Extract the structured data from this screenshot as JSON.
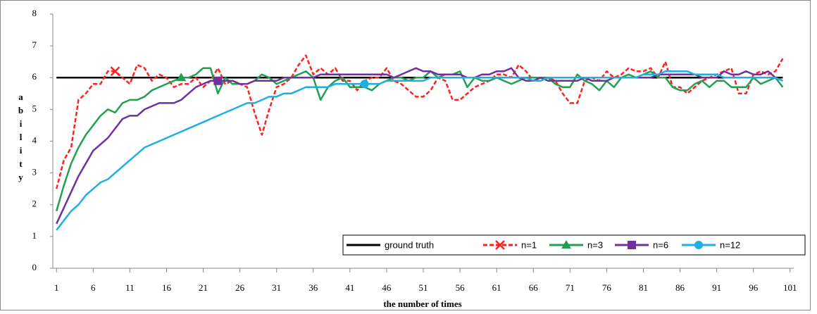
{
  "chart_data": {
    "type": "line",
    "x_label": "the number of times",
    "y_label": "ability",
    "x": [
      1,
      2,
      3,
      4,
      5,
      6,
      7,
      8,
      9,
      10,
      11,
      12,
      13,
      14,
      15,
      16,
      17,
      18,
      19,
      20,
      21,
      22,
      23,
      24,
      25,
      26,
      27,
      28,
      29,
      30,
      31,
      32,
      33,
      34,
      35,
      36,
      37,
      38,
      39,
      40,
      41,
      42,
      43,
      44,
      45,
      46,
      47,
      48,
      49,
      50,
      51,
      52,
      53,
      54,
      55,
      56,
      57,
      58,
      59,
      60,
      61,
      62,
      63,
      64,
      65,
      66,
      67,
      68,
      69,
      70,
      71,
      72,
      73,
      74,
      75,
      76,
      77,
      78,
      79,
      80,
      81,
      82,
      83,
      84,
      85,
      86,
      87,
      88,
      89,
      90,
      91,
      92,
      93,
      94,
      95,
      96,
      97,
      98,
      99,
      100
    ],
    "xlim": [
      0.5,
      101.5
    ],
    "xticks": [
      1,
      6,
      11,
      16,
      21,
      26,
      31,
      36,
      41,
      46,
      51,
      56,
      61,
      66,
      71,
      76,
      81,
      86,
      91,
      96,
      101
    ],
    "ylim": [
      0,
      8
    ],
    "yticks": [
      0,
      1,
      2,
      3,
      4,
      5,
      6,
      7,
      8
    ],
    "series": [
      {
        "name": "ground truth",
        "color": "#000000",
        "dash": false,
        "marker": null,
        "values": [
          6,
          6,
          6,
          6,
          6,
          6,
          6,
          6,
          6,
          6,
          6,
          6,
          6,
          6,
          6,
          6,
          6,
          6,
          6,
          6,
          6,
          6,
          6,
          6,
          6,
          6,
          6,
          6,
          6,
          6,
          6,
          6,
          6,
          6,
          6,
          6,
          6,
          6,
          6,
          6,
          6,
          6,
          6,
          6,
          6,
          6,
          6,
          6,
          6,
          6,
          6,
          6,
          6,
          6,
          6,
          6,
          6,
          6,
          6,
          6,
          6,
          6,
          6,
          6,
          6,
          6,
          6,
          6,
          6,
          6,
          6,
          6,
          6,
          6,
          6,
          6,
          6,
          6,
          6,
          6,
          6,
          6,
          6,
          6,
          6,
          6,
          6,
          6,
          6,
          6,
          6,
          6,
          6,
          6,
          6,
          6,
          6,
          6,
          6,
          6
        ]
      },
      {
        "name": "n=1",
        "color": "#ff2020",
        "dash": true,
        "marker": "x",
        "marker_x": 9,
        "values": [
          2.5,
          3.4,
          3.8,
          5.3,
          5.5,
          5.8,
          5.8,
          6.2,
          6.2,
          6.0,
          5.8,
          6.4,
          6.3,
          5.9,
          6.1,
          6.0,
          5.7,
          5.8,
          5.8,
          6.0,
          5.7,
          5.9,
          6.3,
          5.8,
          5.9,
          5.8,
          5.7,
          4.9,
          4.2,
          5.0,
          5.7,
          5.8,
          6.0,
          6.4,
          6.7,
          6.1,
          6.3,
          6.1,
          6.3,
          5.9,
          5.9,
          5.6,
          5.9,
          6.0,
          6.0,
          6.3,
          5.9,
          5.8,
          5.6,
          5.4,
          5.4,
          5.6,
          6.0,
          5.9,
          5.3,
          5.3,
          5.5,
          5.7,
          5.8,
          5.9,
          6.1,
          6.1,
          6.0,
          6.4,
          6.2,
          5.9,
          5.9,
          6.0,
          5.9,
          5.5,
          5.2,
          5.2,
          5.9,
          6.0,
          5.9,
          6.2,
          6.0,
          6.1,
          6.3,
          6.2,
          6.2,
          6.3,
          6.0,
          6.5,
          5.7,
          5.7,
          5.5,
          5.7,
          5.9,
          6.0,
          6.1,
          6.2,
          6.3,
          5.5,
          5.5,
          6.1,
          6.2,
          6.1,
          6.2,
          6.6
        ]
      },
      {
        "name": "n=3",
        "color": "#20a050",
        "dash": false,
        "marker": "triangle",
        "marker_x": 18,
        "values": [
          1.8,
          2.6,
          3.3,
          3.8,
          4.2,
          4.5,
          4.8,
          5.0,
          4.9,
          5.2,
          5.3,
          5.3,
          5.4,
          5.6,
          5.7,
          5.8,
          5.9,
          6.0,
          6.0,
          6.1,
          6.3,
          6.3,
          5.5,
          6.0,
          5.8,
          5.8,
          5.8,
          5.9,
          6.1,
          6.0,
          5.8,
          5.9,
          6.0,
          6.1,
          6.2,
          6.0,
          5.3,
          5.7,
          5.9,
          6.0,
          5.7,
          5.7,
          5.7,
          5.6,
          5.8,
          5.9,
          6.0,
          6.0,
          5.9,
          6.0,
          6.0,
          6.2,
          6.0,
          6.1,
          6.1,
          6.2,
          5.7,
          6.0,
          5.9,
          5.9,
          6.0,
          5.9,
          5.8,
          5.9,
          6.0,
          6.0,
          6.0,
          6.0,
          5.8,
          5.7,
          5.7,
          6.1,
          5.9,
          5.8,
          5.6,
          5.9,
          5.7,
          6.0,
          6.1,
          6.0,
          6.1,
          6.2,
          6.0,
          6.0,
          5.7,
          5.6,
          5.6,
          5.8,
          5.9,
          5.7,
          5.9,
          5.9,
          5.7,
          5.7,
          5.7,
          6.0,
          5.8,
          5.9,
          6.0,
          5.7
        ]
      },
      {
        "name": "n=6",
        "color": "#7030a0",
        "dash": false,
        "marker": "square",
        "marker_x": 23,
        "values": [
          1.4,
          1.9,
          2.4,
          2.9,
          3.3,
          3.7,
          3.9,
          4.1,
          4.4,
          4.7,
          4.8,
          4.8,
          5.0,
          5.1,
          5.2,
          5.2,
          5.2,
          5.3,
          5.5,
          5.7,
          5.8,
          5.9,
          5.9,
          5.9,
          5.9,
          5.8,
          5.8,
          5.9,
          5.9,
          5.9,
          5.9,
          6.0,
          6.0,
          6.0,
          6.0,
          6.0,
          6.1,
          6.1,
          6.1,
          6.1,
          6.1,
          6.1,
          6.1,
          6.1,
          6.1,
          6.1,
          6.0,
          6.1,
          6.2,
          6.3,
          6.2,
          6.2,
          6.1,
          6.1,
          6.1,
          6.1,
          6.0,
          6.0,
          6.1,
          6.1,
          6.2,
          6.2,
          6.3,
          6.0,
          5.9,
          5.9,
          6.0,
          5.9,
          5.9,
          5.9,
          5.9,
          5.9,
          6.0,
          5.9,
          5.9,
          5.9,
          6.0,
          6.0,
          6.0,
          6.0,
          6.0,
          6.0,
          6.1,
          6.1,
          6.1,
          6.1,
          6.1,
          6.1,
          6.0,
          6.0,
          6.0,
          6.2,
          6.1,
          6.1,
          6.2,
          6.1,
          6.1,
          6.2,
          6.0,
          5.9
        ]
      },
      {
        "name": "n=12",
        "color": "#20b0e0",
        "dash": false,
        "marker": "circle",
        "marker_x": 43,
        "values": [
          1.2,
          1.5,
          1.8,
          2.0,
          2.3,
          2.5,
          2.7,
          2.8,
          3.0,
          3.2,
          3.4,
          3.6,
          3.8,
          3.9,
          4.0,
          4.1,
          4.2,
          4.3,
          4.4,
          4.5,
          4.6,
          4.7,
          4.8,
          4.9,
          5.0,
          5.1,
          5.2,
          5.2,
          5.3,
          5.4,
          5.4,
          5.5,
          5.5,
          5.6,
          5.7,
          5.7,
          5.7,
          5.7,
          5.8,
          5.8,
          5.8,
          5.8,
          5.8,
          5.8,
          5.8,
          5.9,
          5.9,
          5.9,
          5.9,
          5.9,
          5.9,
          6.0,
          6.0,
          6.0,
          6.0,
          6.0,
          6.0,
          6.0,
          6.0,
          6.0,
          6.0,
          6.0,
          6.0,
          6.0,
          6.0,
          5.9,
          5.9,
          6.0,
          6.0,
          6.0,
          6.0,
          6.0,
          6.0,
          6.0,
          6.0,
          6.0,
          6.0,
          6.0,
          6.0,
          6.0,
          6.1,
          6.1,
          6.1,
          6.2,
          6.2,
          6.2,
          6.2,
          6.1,
          6.1,
          6.1,
          6.1,
          6.0,
          6.0,
          6.0,
          6.0,
          6.0,
          6.0,
          6.0,
          6.0,
          5.9
        ]
      }
    ],
    "legend": "bottom-right"
  }
}
